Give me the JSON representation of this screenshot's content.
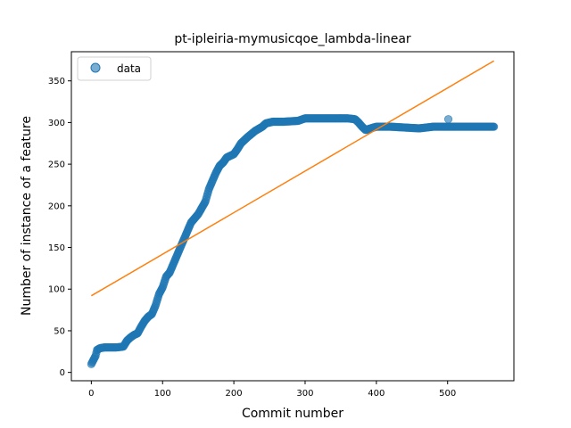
{
  "chart_data": {
    "type": "scatter",
    "title": "pt-ipleiria-mymusicqoe_lambda-linear",
    "xlabel": "Commit number",
    "ylabel": "Number of instance of a feature",
    "xlim": [
      -28,
      593
    ],
    "ylim": [
      -10,
      385
    ],
    "xticks": [
      0,
      100,
      200,
      300,
      400,
      500
    ],
    "yticks": [
      0,
      50,
      100,
      150,
      200,
      250,
      300,
      350
    ],
    "grid": false,
    "legend": {
      "position": "top-left",
      "entries": [
        "data"
      ]
    },
    "series": [
      {
        "name": "data",
        "kind": "scatter",
        "color": "#1f77b4",
        "anchors": [
          [
            0,
            10
          ],
          [
            3,
            15
          ],
          [
            6,
            20
          ],
          [
            8,
            27
          ],
          [
            12,
            29
          ],
          [
            18,
            30
          ],
          [
            25,
            30
          ],
          [
            35,
            30
          ],
          [
            45,
            31
          ],
          [
            50,
            38
          ],
          [
            55,
            42
          ],
          [
            60,
            45
          ],
          [
            65,
            47
          ],
          [
            70,
            55
          ],
          [
            75,
            62
          ],
          [
            80,
            67
          ],
          [
            85,
            70
          ],
          [
            90,
            80
          ],
          [
            95,
            94
          ],
          [
            100,
            102
          ],
          [
            105,
            115
          ],
          [
            110,
            120
          ],
          [
            115,
            130
          ],
          [
            120,
            140
          ],
          [
            125,
            150
          ],
          [
            130,
            160
          ],
          [
            135,
            170
          ],
          [
            140,
            180
          ],
          [
            150,
            190
          ],
          [
            160,
            205
          ],
          [
            165,
            220
          ],
          [
            170,
            230
          ],
          [
            175,
            240
          ],
          [
            180,
            248
          ],
          [
            185,
            252
          ],
          [
            190,
            258
          ],
          [
            200,
            262
          ],
          [
            205,
            268
          ],
          [
            210,
            275
          ],
          [
            220,
            283
          ],
          [
            230,
            290
          ],
          [
            240,
            295
          ],
          [
            245,
            299
          ],
          [
            255,
            301
          ],
          [
            270,
            301
          ],
          [
            290,
            302
          ],
          [
            300,
            305
          ],
          [
            320,
            305
          ],
          [
            340,
            305
          ],
          [
            360,
            305
          ],
          [
            370,
            304
          ],
          [
            375,
            300
          ],
          [
            380,
            295
          ],
          [
            385,
            291
          ],
          [
            392,
            293
          ],
          [
            400,
            295
          ],
          [
            420,
            295
          ],
          [
            440,
            294
          ],
          [
            460,
            293
          ],
          [
            480,
            295
          ],
          [
            500,
            295
          ],
          [
            520,
            295
          ],
          [
            540,
            295
          ],
          [
            565,
            295
          ]
        ],
        "outliers": [
          [
            501,
            304
          ]
        ]
      },
      {
        "name": "",
        "kind": "line",
        "color": "#ff7f0e",
        "x": [
          0,
          565
        ],
        "y": [
          92,
          374
        ]
      }
    ]
  }
}
